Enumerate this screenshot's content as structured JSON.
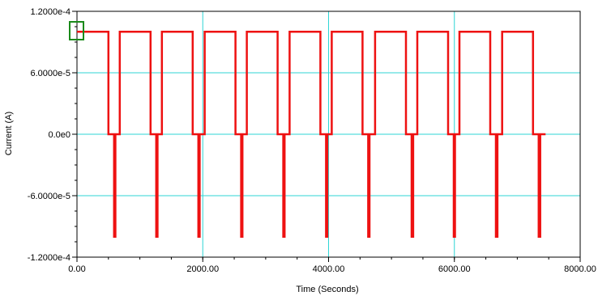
{
  "chart_data": {
    "type": "line",
    "title": "",
    "xlabel": "Time (Seconds)",
    "ylabel": "Current (A)",
    "xlim": [
      0,
      8000
    ],
    "ylim": [
      -0.00012,
      0.00012
    ],
    "x_ticks": [
      {
        "value": 0,
        "label": "0.00"
      },
      {
        "value": 2000,
        "label": "2000.00"
      },
      {
        "value": 4000,
        "label": "4000.00"
      },
      {
        "value": 6000,
        "label": "6000.00"
      },
      {
        "value": 8000,
        "label": "8000.00"
      }
    ],
    "y_ticks": [
      {
        "value": 0.00012,
        "label": "1.2000e-4"
      },
      {
        "value": 6e-05,
        "label": "6.0000e-5"
      },
      {
        "value": 0,
        "label": "0.0e0"
      },
      {
        "value": -6e-05,
        "label": "-6.0000e-5"
      },
      {
        "value": -0.00012,
        "label": "-1.2000e-4"
      }
    ],
    "grid": true,
    "colors": {
      "series": "#ee1111",
      "grid": "#2fd6d6",
      "axis": "#000000",
      "marker": "#1a8a1a"
    },
    "series": [
      {
        "points": [
          [
            0,
            0.0001
          ],
          [
            500,
            0.0001
          ],
          [
            500,
            0
          ],
          [
            590,
            0
          ],
          [
            590,
            -0.0001
          ],
          [
            610,
            -0.0001
          ],
          [
            610,
            0
          ],
          [
            680,
            0
          ],
          [
            680,
            0.0001
          ],
          [
            1170,
            0.0001
          ],
          [
            1170,
            0
          ],
          [
            1260,
            0
          ],
          [
            1260,
            -0.0001
          ],
          [
            1280,
            -0.0001
          ],
          [
            1280,
            0
          ],
          [
            1350,
            0
          ],
          [
            1350,
            0.0001
          ],
          [
            1840,
            0.0001
          ],
          [
            1840,
            0
          ],
          [
            1930,
            0
          ],
          [
            1930,
            -0.0001
          ],
          [
            1950,
            -0.0001
          ],
          [
            1950,
            0
          ],
          [
            2030,
            0
          ],
          [
            2030,
            0.0001
          ],
          [
            2520,
            0.0001
          ],
          [
            2520,
            0
          ],
          [
            2610,
            0
          ],
          [
            2610,
            -0.0001
          ],
          [
            2630,
            -0.0001
          ],
          [
            2630,
            0
          ],
          [
            2700,
            0
          ],
          [
            2700,
            0.0001
          ],
          [
            3190,
            0.0001
          ],
          [
            3190,
            0
          ],
          [
            3280,
            0
          ],
          [
            3280,
            -0.0001
          ],
          [
            3300,
            -0.0001
          ],
          [
            3300,
            0
          ],
          [
            3380,
            0
          ],
          [
            3380,
            0.0001
          ],
          [
            3870,
            0.0001
          ],
          [
            3870,
            0
          ],
          [
            3960,
            0
          ],
          [
            3960,
            -0.0001
          ],
          [
            3980,
            -0.0001
          ],
          [
            3980,
            0
          ],
          [
            4050,
            0
          ],
          [
            4050,
            0.0001
          ],
          [
            4540,
            0.0001
          ],
          [
            4540,
            0
          ],
          [
            4630,
            0
          ],
          [
            4630,
            -0.0001
          ],
          [
            4650,
            -0.0001
          ],
          [
            4650,
            0
          ],
          [
            4740,
            0
          ],
          [
            4740,
            0.0001
          ],
          [
            5230,
            0.0001
          ],
          [
            5230,
            0
          ],
          [
            5320,
            0
          ],
          [
            5320,
            -0.0001
          ],
          [
            5345,
            -0.0001
          ],
          [
            5345,
            0
          ],
          [
            5410,
            0
          ],
          [
            5410,
            0.0001
          ],
          [
            5900,
            0.0001
          ],
          [
            5900,
            0
          ],
          [
            5990,
            0
          ],
          [
            5990,
            -0.0001
          ],
          [
            6010,
            -0.0001
          ],
          [
            6010,
            0
          ],
          [
            6080,
            0
          ],
          [
            6080,
            0.0001
          ],
          [
            6570,
            0.0001
          ],
          [
            6570,
            0
          ],
          [
            6660,
            0
          ],
          [
            6660,
            -0.0001
          ],
          [
            6685,
            -0.0001
          ],
          [
            6685,
            0
          ],
          [
            6760,
            0
          ],
          [
            6760,
            0.0001
          ],
          [
            7250,
            0.0001
          ],
          [
            7250,
            0
          ],
          [
            7340,
            0
          ],
          [
            7340,
            -0.0001
          ],
          [
            7365,
            -0.0001
          ],
          [
            7365,
            0
          ],
          [
            7450,
            0
          ]
        ]
      }
    ]
  }
}
